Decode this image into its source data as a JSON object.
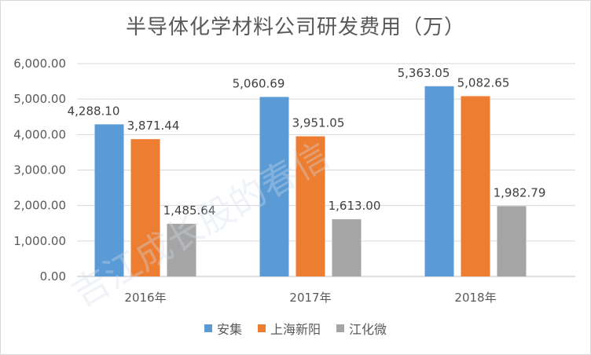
{
  "chart_data": {
    "type": "bar",
    "title": "半导体化学材料公司研发费用（万）",
    "categories": [
      "2016年",
      "2017年",
      "2018年"
    ],
    "series": [
      {
        "name": "安集",
        "color": "#5b9bd5",
        "values": [
          4288.1,
          5060.69,
          5363.05
        ],
        "labels": [
          "4,288.10",
          "5,060.69",
          "5,363.05"
        ]
      },
      {
        "name": "上海新阳",
        "color": "#ed7d31",
        "values": [
          3871.44,
          3951.05,
          5082.65
        ],
        "labels": [
          "3,871.44",
          "3,951.05",
          "5,082.65"
        ]
      },
      {
        "name": "江化微",
        "color": "#a5a5a5",
        "values": [
          1485.64,
          1613.0,
          1982.79
        ],
        "labels": [
          "1,485.64",
          "1,613.00",
          "1,982.79"
        ]
      }
    ],
    "ylim": [
      0,
      6000
    ],
    "yticks": [
      "0.00",
      "1,000.00",
      "2,000.00",
      "3,000.00",
      "4,000.00",
      "5,000.00",
      "6,000.00"
    ],
    "grid": true,
    "legend_position": "bottom",
    "watermark": "吉江成长股的春信"
  }
}
